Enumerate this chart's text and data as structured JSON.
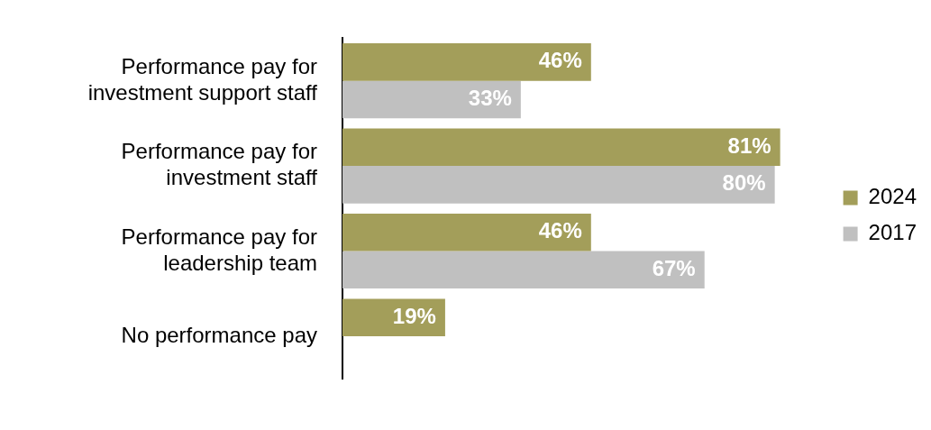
{
  "chart_data": {
    "type": "bar",
    "orientation": "horizontal",
    "categories": [
      "Performance pay for investment support staff",
      "Performance pay for investment staff",
      "Performance pay for leadership team",
      "No performance pay"
    ],
    "series": [
      {
        "name": "2024",
        "color": "#a39e5a",
        "values": [
          46,
          81,
          46,
          19
        ],
        "value_labels": [
          "46%",
          "81%",
          "46%",
          "19%"
        ]
      },
      {
        "name": "2017",
        "color": "#c0c0c0",
        "values": [
          33,
          80,
          67,
          null
        ],
        "value_labels": [
          "33%",
          "80%",
          "67%",
          null
        ]
      }
    ],
    "legend": "right",
    "tick_labels": "y"
  }
}
